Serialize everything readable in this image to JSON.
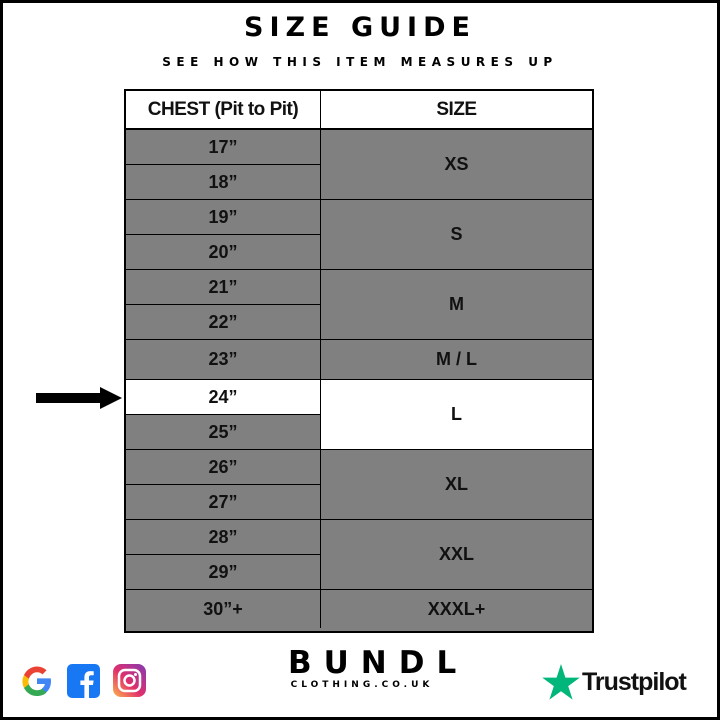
{
  "header": {
    "title": "SIZE GUIDE",
    "subtitle": "SEE HOW THIS ITEM MEASURES UP"
  },
  "table": {
    "columns": [
      "CHEST (Pit to Pit)",
      "SIZE"
    ],
    "chest_rows": [
      "17”",
      "18”",
      "19”",
      "20”",
      "21”",
      "22”",
      "23”",
      "24”",
      "25”",
      "26”",
      "27”",
      "28”",
      "29”",
      "30”+"
    ],
    "size_groups": [
      {
        "label": "XS",
        "rows": [
          0,
          1
        ]
      },
      {
        "label": "S",
        "rows": [
          2,
          3
        ]
      },
      {
        "label": "M",
        "rows": [
          4,
          5
        ]
      },
      {
        "label": "M / L",
        "rows": [
          6
        ]
      },
      {
        "label": "L",
        "rows": [
          7,
          8
        ]
      },
      {
        "label": "XL",
        "rows": [
          9,
          10
        ]
      },
      {
        "label": "XXL",
        "rows": [
          11,
          12
        ]
      },
      {
        "label": "XXXL+",
        "rows": [
          13
        ]
      }
    ],
    "highlighted_chest_row": 7,
    "highlighted_size_group": 4
  },
  "footer": {
    "social_icons": [
      "google-icon",
      "facebook-icon",
      "instagram-icon"
    ],
    "brand_name": "BUNDL",
    "brand_url": "CLOTHING.CO.UK",
    "trustpilot_label": "Trustpilot"
  },
  "colors": {
    "row_gray": "#808080",
    "highlight": "#ffffff",
    "trustpilot_green": "#00b67a"
  }
}
